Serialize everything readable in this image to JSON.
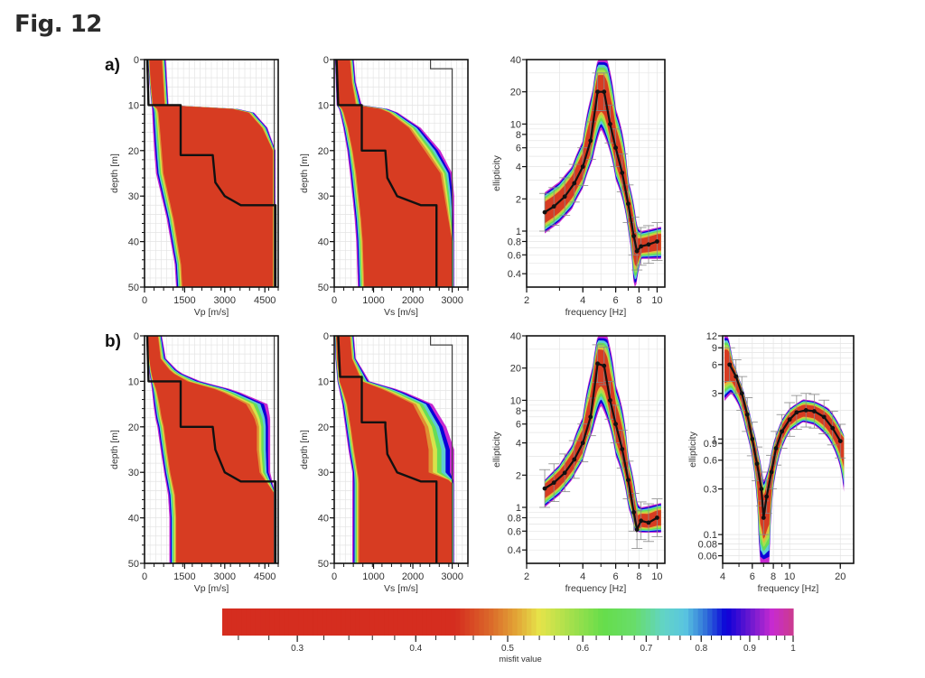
{
  "figure": {
    "title": "Fig. 12",
    "row_labels": [
      "a)",
      "b)"
    ]
  },
  "chart_data": [
    {
      "id": "a-vp",
      "row": "a)",
      "type": "area",
      "title": "",
      "xlabel": "Vp [m/s]",
      "ylabel": "depth [m]",
      "xlim": [
        0,
        5000
      ],
      "ylim": [
        50,
        0
      ],
      "xticks": [
        0,
        1500,
        3000,
        4500
      ],
      "yticks": [
        0,
        10,
        20,
        30,
        40,
        50
      ],
      "grid": true,
      "ensemble": {
        "depth": [
          0,
          5,
          10,
          11,
          15,
          20,
          25,
          30,
          35,
          40,
          45,
          50
        ],
        "vmin": [
          150,
          200,
          280,
          300,
          330,
          380,
          450,
          650,
          850,
          1000,
          1150,
          1200
        ],
        "vmax_best": [
          650,
          700,
          750,
          3800,
          4400,
          4800,
          4800,
          4800,
          4800,
          4800,
          4800,
          4800
        ],
        "vmax_all": [
          800,
          850,
          900,
          4000,
          4600,
          4900,
          4900,
          4900,
          4900,
          4900,
          4900,
          4900
        ]
      },
      "best_model": {
        "depth": [
          0,
          10,
          10,
          21,
          21,
          27,
          30,
          32,
          32,
          50
        ],
        "velocity": [
          100,
          150,
          1350,
          1350,
          2550,
          2650,
          3000,
          3600,
          4900,
          4900
        ]
      },
      "reference_line": {
        "depth": [
          0,
          50
        ],
        "velocity": [
          4850,
          4850
        ]
      }
    },
    {
      "id": "a-vs",
      "row": "a)",
      "type": "area",
      "xlabel": "Vs [m/s]",
      "ylabel": "depth [m]",
      "xlim": [
        0,
        3400
      ],
      "ylim": [
        50,
        0
      ],
      "xticks": [
        0,
        1000,
        2000,
        3000
      ],
      "yticks": [
        0,
        10,
        20,
        30,
        40,
        50
      ],
      "grid": true,
      "ensemble": {
        "depth": [
          0,
          5,
          10,
          11,
          15,
          20,
          25,
          30,
          35,
          40,
          45,
          50
        ],
        "vmin": [
          40,
          60,
          80,
          150,
          250,
          350,
          420,
          480,
          540,
          580,
          600,
          620
        ],
        "vmax_best": [
          400,
          450,
          550,
          1300,
          1900,
          2300,
          2700,
          2800,
          2900,
          3000,
          3000,
          3000
        ],
        "vmax_all": [
          500,
          550,
          700,
          1500,
          2200,
          2700,
          3000,
          3050,
          3050,
          3050,
          3050,
          3050
        ]
      },
      "best_model": {
        "depth": [
          0,
          10,
          10,
          20,
          20,
          26,
          30,
          32,
          32,
          50
        ],
        "velocity": [
          60,
          100,
          700,
          700,
          1300,
          1350,
          1600,
          2200,
          2600,
          2600
        ]
      },
      "reference_line": {
        "depth": [
          0,
          2,
          2,
          50
        ],
        "velocity": [
          2450,
          2450,
          3000,
          3000
        ]
      }
    },
    {
      "id": "a-ellipticity",
      "row": "a)",
      "type": "line",
      "xlabel": "frequency [Hz]",
      "ylabel": "ellipticity",
      "xscale": "log",
      "yscale": "log",
      "xlim": [
        2,
        11
      ],
      "ylim": [
        0.3,
        40
      ],
      "xticks": [
        2,
        4,
        6,
        8,
        10
      ],
      "yticks": [
        0.4,
        0.6,
        0.8,
        1,
        2,
        4,
        6,
        8,
        10,
        20,
        40
      ],
      "grid": true,
      "series": [
        {
          "name": "observed",
          "x": [
            2.5,
            2.8,
            3.2,
            3.6,
            4.0,
            4.4,
            4.8,
            5.2,
            5.6,
            6.0,
            6.5,
            7.0,
            7.5,
            7.8,
            8.2,
            9.0,
            10.0
          ],
          "y": [
            1.5,
            1.7,
            2.1,
            2.8,
            4.0,
            7.0,
            20.0,
            20.0,
            10.0,
            6.0,
            3.5,
            1.8,
            0.9,
            0.65,
            0.72,
            0.75,
            0.8
          ]
        }
      ],
      "band_upper": {
        "x": [
          2.5,
          3.0,
          3.5,
          4.0,
          4.5,
          4.8,
          5.4,
          6.0,
          7.0,
          7.8,
          8.2,
          10.5
        ],
        "y": [
          2.3,
          2.9,
          4.0,
          7.0,
          20.0,
          40.0,
          40.0,
          14.0,
          3.0,
          1.1,
          1.0,
          1.1
        ]
      },
      "band_lower": {
        "x": [
          2.5,
          3.0,
          3.5,
          4.0,
          4.5,
          5.0,
          5.5,
          6.0,
          7.0,
          7.5,
          7.7,
          8.2,
          10.5
        ],
        "y": [
          0.95,
          1.2,
          1.6,
          2.5,
          4.5,
          9.0,
          6.0,
          3.0,
          1.0,
          0.3,
          0.3,
          0.55,
          0.55
        ]
      }
    },
    {
      "id": "b-vp",
      "row": "b)",
      "type": "area",
      "xlabel": "Vp [m/s]",
      "ylabel": "depth [m]",
      "xlim": [
        0,
        5000
      ],
      "ylim": [
        50,
        0
      ],
      "xticks": [
        0,
        1500,
        3000,
        4500
      ],
      "yticks": [
        0,
        10,
        20,
        30,
        40,
        50
      ],
      "grid": true,
      "ensemble": {
        "depth": [
          0,
          5,
          8,
          10,
          12,
          15,
          18,
          20,
          25,
          30,
          35,
          40,
          45,
          50
        ],
        "vmin": [
          100,
          150,
          200,
          250,
          300,
          350,
          420,
          500,
          620,
          750,
          900,
          950,
          950,
          950
        ],
        "vmax_best": [
          500,
          600,
          1000,
          1600,
          2800,
          3800,
          4100,
          4200,
          4200,
          4300,
          4900,
          4900,
          4900,
          4900
        ],
        "vmax_all": [
          650,
          800,
          1300,
          2100,
          3400,
          4600,
          4700,
          4700,
          4700,
          4700,
          4900,
          4900,
          4900,
          4900
        ]
      },
      "best_model": {
        "depth": [
          0,
          10,
          10,
          20,
          20,
          25,
          30,
          32,
          32,
          50
        ],
        "velocity": [
          100,
          150,
          1350,
          1350,
          2550,
          2650,
          3000,
          3600,
          4900,
          4900
        ]
      },
      "reference_line": {
        "depth": [
          0,
          50
        ],
        "velocity": [
          4850,
          4850
        ]
      }
    },
    {
      "id": "b-vs",
      "row": "b)",
      "type": "area",
      "xlabel": "Vs [m/s]",
      "ylabel": "depth [m]",
      "xlim": [
        0,
        3400
      ],
      "ylim": [
        50,
        0
      ],
      "xticks": [
        0,
        1000,
        2000,
        3000
      ],
      "yticks": [
        0,
        10,
        20,
        30,
        40,
        50
      ],
      "grid": true,
      "ensemble": {
        "depth": [
          0,
          5,
          10,
          12,
          15,
          20,
          25,
          30,
          32,
          35,
          40,
          45,
          50
        ],
        "vmin": [
          30,
          50,
          100,
          150,
          220,
          300,
          380,
          480,
          480,
          480,
          480,
          480,
          480
        ],
        "vmax_best": [
          400,
          450,
          700,
          1300,
          2000,
          2300,
          2400,
          2400,
          3000,
          3000,
          3000,
          3000,
          3000
        ],
        "vmax_all": [
          500,
          550,
          900,
          1700,
          2500,
          2850,
          3050,
          3050,
          3050,
          3050,
          3050,
          3050,
          3050
        ]
      },
      "best_model": {
        "depth": [
          0,
          9,
          9,
          19,
          19,
          20,
          26,
          30,
          32,
          32,
          50
        ],
        "velocity": [
          100,
          150,
          700,
          700,
          1300,
          1300,
          1350,
          1600,
          2200,
          2600,
          2600
        ]
      },
      "reference_line": {
        "depth": [
          0,
          2,
          2,
          50
        ],
        "velocity": [
          2450,
          2450,
          3000,
          3000
        ]
      }
    },
    {
      "id": "b-ellipticity-1",
      "row": "b)",
      "type": "line",
      "xlabel": "frequency [Hz]",
      "ylabel": "ellipticity",
      "xscale": "log",
      "yscale": "log",
      "xlim": [
        2,
        11
      ],
      "ylim": [
        0.3,
        40
      ],
      "xticks": [
        2,
        4,
        6,
        8,
        10
      ],
      "yticks": [
        0.4,
        0.6,
        0.8,
        1,
        2,
        4,
        6,
        8,
        10,
        20,
        40
      ],
      "grid": true,
      "series": [
        {
          "name": "observed",
          "x": [
            2.5,
            2.8,
            3.2,
            3.6,
            4.0,
            4.4,
            4.8,
            5.2,
            5.6,
            6.0,
            6.5,
            7.0,
            7.5,
            7.8,
            8.2,
            9.0,
            10.0
          ],
          "y": [
            1.5,
            1.7,
            2.1,
            2.8,
            4.0,
            7.0,
            22.0,
            21.0,
            10.0,
            6.0,
            3.5,
            1.8,
            0.9,
            0.62,
            0.75,
            0.72,
            0.8
          ]
        }
      ],
      "band_upper": {
        "x": [
          2.5,
          3.0,
          3.5,
          4.0,
          4.5,
          4.8,
          5.4,
          6.0,
          7.0,
          7.8,
          8.2,
          10.5
        ],
        "y": [
          1.8,
          2.5,
          3.8,
          7.0,
          20.0,
          40.0,
          40.0,
          14.0,
          3.0,
          1.1,
          1.0,
          1.1
        ]
      },
      "band_lower": {
        "x": [
          2.5,
          3.0,
          3.5,
          4.0,
          4.5,
          5.0,
          5.5,
          6.0,
          7.0,
          7.6,
          8.2,
          10.5
        ],
        "y": [
          1.0,
          1.3,
          1.8,
          2.7,
          5.0,
          9.0,
          6.0,
          3.0,
          1.0,
          0.6,
          0.58,
          0.58
        ]
      }
    },
    {
      "id": "b-ellipticity-2",
      "row": "b)",
      "type": "line",
      "xlabel": "frequency [Hz]",
      "ylabel": "ellipticity",
      "xscale": "log",
      "yscale": "log",
      "xlim": [
        4,
        24
      ],
      "ylim": [
        0.05,
        12
      ],
      "xticks": [
        4,
        6,
        8,
        10,
        20
      ],
      "yticks": [
        0.06,
        0.08,
        0.1,
        0.3,
        0.6,
        0.9,
        1,
        3,
        6,
        9,
        12
      ],
      "ytick_labels": [
        "0.06",
        "0.08",
        "0.1",
        "0.3",
        "0.6",
        "0.9",
        "1",
        "3",
        "6",
        "9",
        "12"
      ],
      "grid": true,
      "series": [
        {
          "name": "observed",
          "x": [
            4.4,
            4.8,
            5.2,
            5.6,
            6.0,
            6.4,
            6.8,
            7.0,
            7.3,
            7.8,
            8.3,
            9.0,
            10.0,
            11.0,
            12.5,
            14.0,
            16.0,
            18.0,
            20.0
          ],
          "y": [
            6.0,
            4.5,
            3.0,
            1.8,
            1.0,
            0.55,
            0.3,
            0.15,
            0.25,
            0.45,
            0.8,
            1.2,
            1.6,
            1.9,
            2.0,
            1.95,
            1.7,
            1.3,
            0.95
          ]
        }
      ],
      "band_upper": {
        "x": [
          4.1,
          4.3,
          4.6,
          5.0,
          5.5,
          6.0,
          6.5,
          7.0,
          7.5,
          8.0,
          9.0,
          10.0,
          12.0,
          14.0,
          17.0,
          21.0
        ],
        "y": [
          12.0,
          12.0,
          6.5,
          4.3,
          2.6,
          1.4,
          0.75,
          0.35,
          0.5,
          0.9,
          1.6,
          2.1,
          2.6,
          2.5,
          2.1,
          1.1
        ]
      },
      "band_lower": {
        "x": [
          4.1,
          4.5,
          5.0,
          5.5,
          6.0,
          6.3,
          6.6,
          7.3,
          7.6,
          8.0,
          9.0,
          10.0,
          12.0,
          14.0,
          17.0,
          20.0,
          21.0
        ],
        "y": [
          2.5,
          3.0,
          2.2,
          1.2,
          0.6,
          0.3,
          0.05,
          0.05,
          0.05,
          0.3,
          0.8,
          1.2,
          1.5,
          1.4,
          1.0,
          0.5,
          0.28
        ]
      }
    },
    {
      "id": "colorbar",
      "type": "heatmap",
      "xlabel": "misfit value",
      "xscale": "log",
      "range": [
        0.25,
        1
      ],
      "ticks": [
        0.3,
        0.4,
        0.5,
        0.6,
        0.7,
        0.8,
        0.9,
        1
      ],
      "tick_labels": [
        "0.3",
        "0.4",
        "0.5",
        "0.6",
        "0.7",
        "0.8",
        "0.9",
        "1"
      ],
      "stops": [
        {
          "value": 0.25,
          "color": "#d52d1f"
        },
        {
          "value": 0.44,
          "color": "#d52d1f"
        },
        {
          "value": 0.48,
          "color": "#db6a2a"
        },
        {
          "value": 0.51,
          "color": "#e2a336"
        },
        {
          "value": 0.54,
          "color": "#e6e44a"
        },
        {
          "value": 0.58,
          "color": "#a8e04c"
        },
        {
          "value": 0.63,
          "color": "#66dd4b"
        },
        {
          "value": 0.68,
          "color": "#68dd6a"
        },
        {
          "value": 0.73,
          "color": "#62d4c6"
        },
        {
          "value": 0.77,
          "color": "#59c4e0"
        },
        {
          "value": 0.81,
          "color": "#2f6ed9"
        },
        {
          "value": 0.85,
          "color": "#0a00d8"
        },
        {
          "value": 0.9,
          "color": "#6a18d0"
        },
        {
          "value": 0.95,
          "color": "#c72ad0"
        },
        {
          "value": 1.0,
          "color": "#cc3c8c"
        }
      ]
    }
  ],
  "colors": {
    "best_fit": "#d52d1f",
    "model_line": "#111111",
    "grid": "#e4e4e4",
    "errorbar": "#888888"
  }
}
